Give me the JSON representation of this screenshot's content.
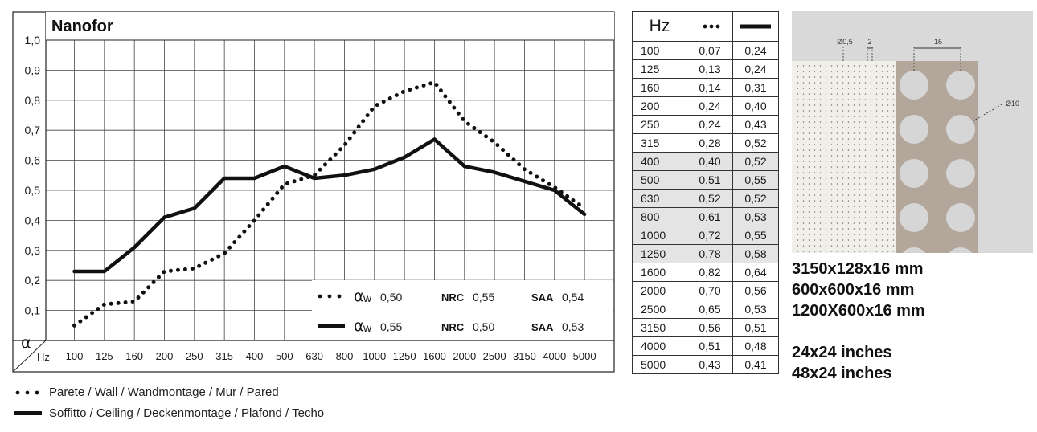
{
  "chart_data": {
    "type": "line",
    "title": "Nanofor",
    "ylabel": "α",
    "xlabel": "Hz",
    "y_ticks": [
      "1,0",
      "0,9",
      "0,8",
      "0,7",
      "0,6",
      "0,5",
      "0,4",
      "0,3",
      "0,2",
      "0,1"
    ],
    "ylim": [
      0,
      1.0
    ],
    "categories": [
      "100",
      "125",
      "160",
      "200",
      "250",
      "315",
      "400",
      "500",
      "630",
      "800",
      "1000",
      "1250",
      "1600",
      "2000",
      "2500",
      "3150",
      "4000",
      "5000"
    ],
    "grid": true,
    "series": [
      {
        "style": "dotted",
        "values": [
          0.05,
          0.12,
          0.13,
          0.23,
          0.24,
          0.29,
          0.4,
          0.52,
          0.55,
          0.65,
          0.78,
          0.83,
          0.86,
          0.73,
          0.66,
          0.57,
          0.51,
          0.44
        ]
      },
      {
        "style": "solid",
        "values": [
          0.23,
          0.23,
          0.31,
          0.41,
          0.44,
          0.54,
          0.54,
          0.58,
          0.54,
          0.55,
          0.57,
          0.61,
          0.67,
          0.58,
          0.56,
          0.53,
          0.5,
          0.42
        ]
      }
    ],
    "inset_legend": [
      {
        "alpha_label": "α",
        "alpha_sub": "w",
        "alpha_value": "0,50",
        "nrc_label": "NRC",
        "nrc_value": "0,55",
        "saa_label": "SAA",
        "saa_value": "0,54"
      },
      {
        "alpha_label": "α",
        "alpha_sub": "w",
        "alpha_value": "0,55",
        "nrc_label": "NRC",
        "nrc_value": "0,50",
        "saa_label": "SAA",
        "saa_value": "0,53"
      }
    ]
  },
  "table": {
    "header_hz": "Hz",
    "rows": [
      [
        "100",
        "0,07",
        "0,24"
      ],
      [
        "125",
        "0,13",
        "0,24"
      ],
      [
        "160",
        "0,14",
        "0,31"
      ],
      [
        "200",
        "0,24",
        "0,40"
      ],
      [
        "250",
        "0,24",
        "0,43"
      ],
      [
        "315",
        "0,28",
        "0,52"
      ],
      [
        "400",
        "0,40",
        "0,52"
      ],
      [
        "500",
        "0,51",
        "0,55"
      ],
      [
        "630",
        "0,52",
        "0,52"
      ],
      [
        "800",
        "0,61",
        "0,53"
      ],
      [
        "1000",
        "0,72",
        "0,55"
      ],
      [
        "1250",
        "0,78",
        "0,58"
      ],
      [
        "1600",
        "0,82",
        "0,64"
      ],
      [
        "2000",
        "0,70",
        "0,56"
      ],
      [
        "2500",
        "0,65",
        "0,53"
      ],
      [
        "3150",
        "0,56",
        "0,51"
      ],
      [
        "4000",
        "0,51",
        "0,48"
      ],
      [
        "5000",
        "0,43",
        "0,41"
      ]
    ],
    "shaded_rows": [
      6,
      7,
      8,
      9,
      10,
      11
    ]
  },
  "diagram": {
    "label_hole_small": "Ø0,5",
    "label_gap": "2",
    "label_pitch": "16",
    "label_hole_large": "Ø10",
    "colors": {
      "background": "#d9d9d9",
      "fine_panel": "#f1efea",
      "perforated_panel": "#b3a69b",
      "hole": "#d6d6d6"
    }
  },
  "specs": {
    "sizes_mm": [
      "3150x128x16 mm",
      "600x600x16 mm",
      "1200X600x16 mm"
    ],
    "sizes_in": [
      "24x24 inches",
      "48x24 inches"
    ]
  },
  "legend": {
    "wall": "Parete / Wall / Wandmontage / Mur / Pared",
    "ceiling": "Soffitto / Ceiling / Deckenmontage / Plafond / Techo"
  }
}
